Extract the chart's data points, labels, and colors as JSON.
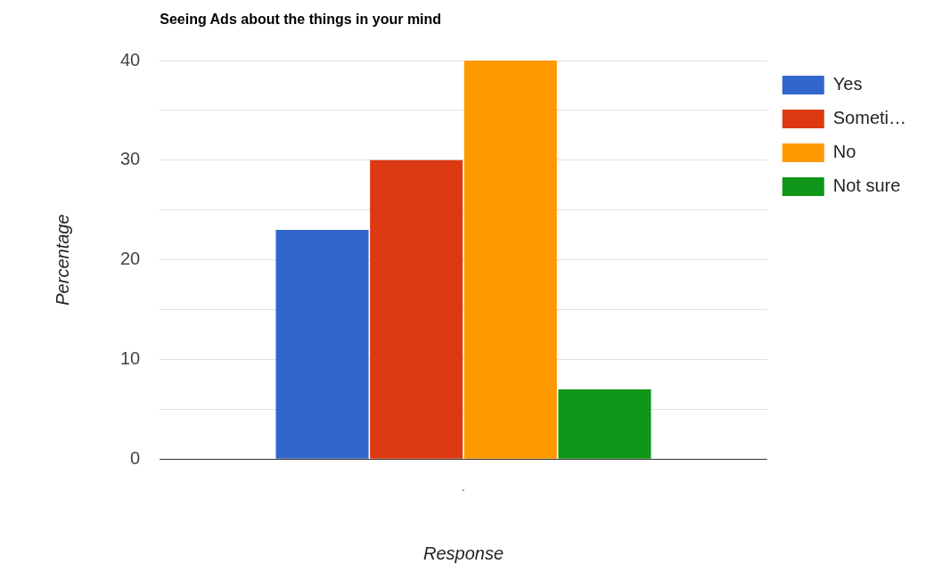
{
  "chart_data": {
    "type": "bar",
    "title": "Seeing Ads about the things in your mind",
    "xlabel": "Response",
    "ylabel": "Percentage",
    "categories": [
      "."
    ],
    "series": [
      {
        "name": "Yes",
        "color": "#3366cc",
        "values": [
          23
        ]
      },
      {
        "name": "Someti…",
        "color": "#dc3912",
        "values": [
          30
        ]
      },
      {
        "name": "No",
        "color": "#ff9900",
        "values": [
          40
        ]
      },
      {
        "name": "Not sure",
        "color": "#109618",
        "values": [
          7
        ]
      }
    ],
    "ylim": [
      0,
      40
    ],
    "yticks": [
      0,
      {
        "value": 5,
        "label": null
      },
      10,
      {
        "value": 15,
        "label": null
      },
      20,
      {
        "value": 25,
        "label": null
      },
      30,
      {
        "value": 35,
        "label": null
      },
      40
    ],
    "grid": "y",
    "legend": "top right"
  }
}
